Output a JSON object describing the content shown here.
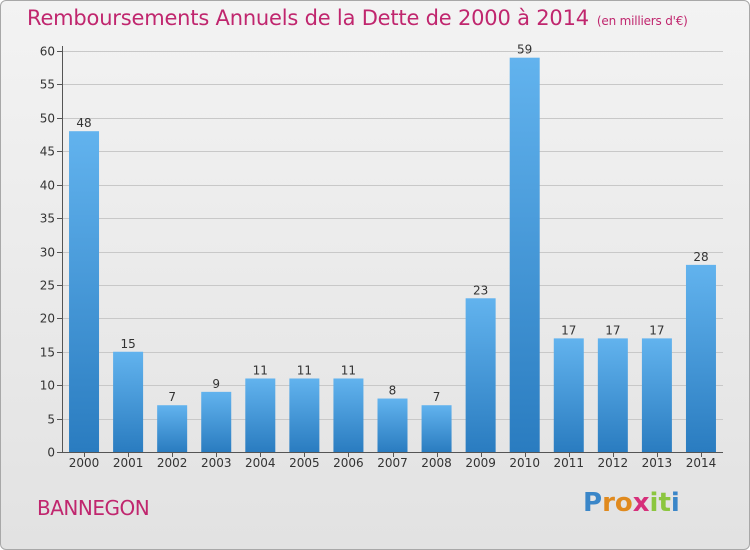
{
  "title": "Remboursements Annuels de la Dette de 2000 à 2014",
  "unit": "(en milliers d'€)",
  "town": "BANNEGON",
  "logo": {
    "letters": [
      "P",
      "r",
      "o",
      "x",
      "i",
      "t",
      "i"
    ],
    "colors": [
      "#3a86c8",
      "#e08a1e",
      "#e08a1e",
      "#d62f7a",
      "#8cc63f",
      "#8cc63f",
      "#3a86c8"
    ]
  },
  "colors": {
    "bar_top": "#62b3ee",
    "bar_bottom": "#2a7cc0",
    "title": "#c0266e",
    "grid": "#c8c8c8"
  },
  "chart_data": {
    "type": "bar",
    "categories": [
      "2000",
      "2001",
      "2002",
      "2003",
      "2004",
      "2005",
      "2006",
      "2007",
      "2008",
      "2009",
      "2010",
      "2011",
      "2012",
      "2013",
      "2014"
    ],
    "values": [
      48,
      15,
      7,
      9,
      11,
      11,
      11,
      8,
      7,
      23,
      59,
      17,
      17,
      17,
      28
    ],
    "title": "Remboursements Annuels de la Dette de 2000 à 2014",
    "ylim": [
      0,
      60
    ],
    "yticks": [
      0,
      5,
      10,
      15,
      20,
      25,
      30,
      35,
      40,
      45,
      50,
      55,
      60
    ],
    "grid": true,
    "data_labels": true
  }
}
